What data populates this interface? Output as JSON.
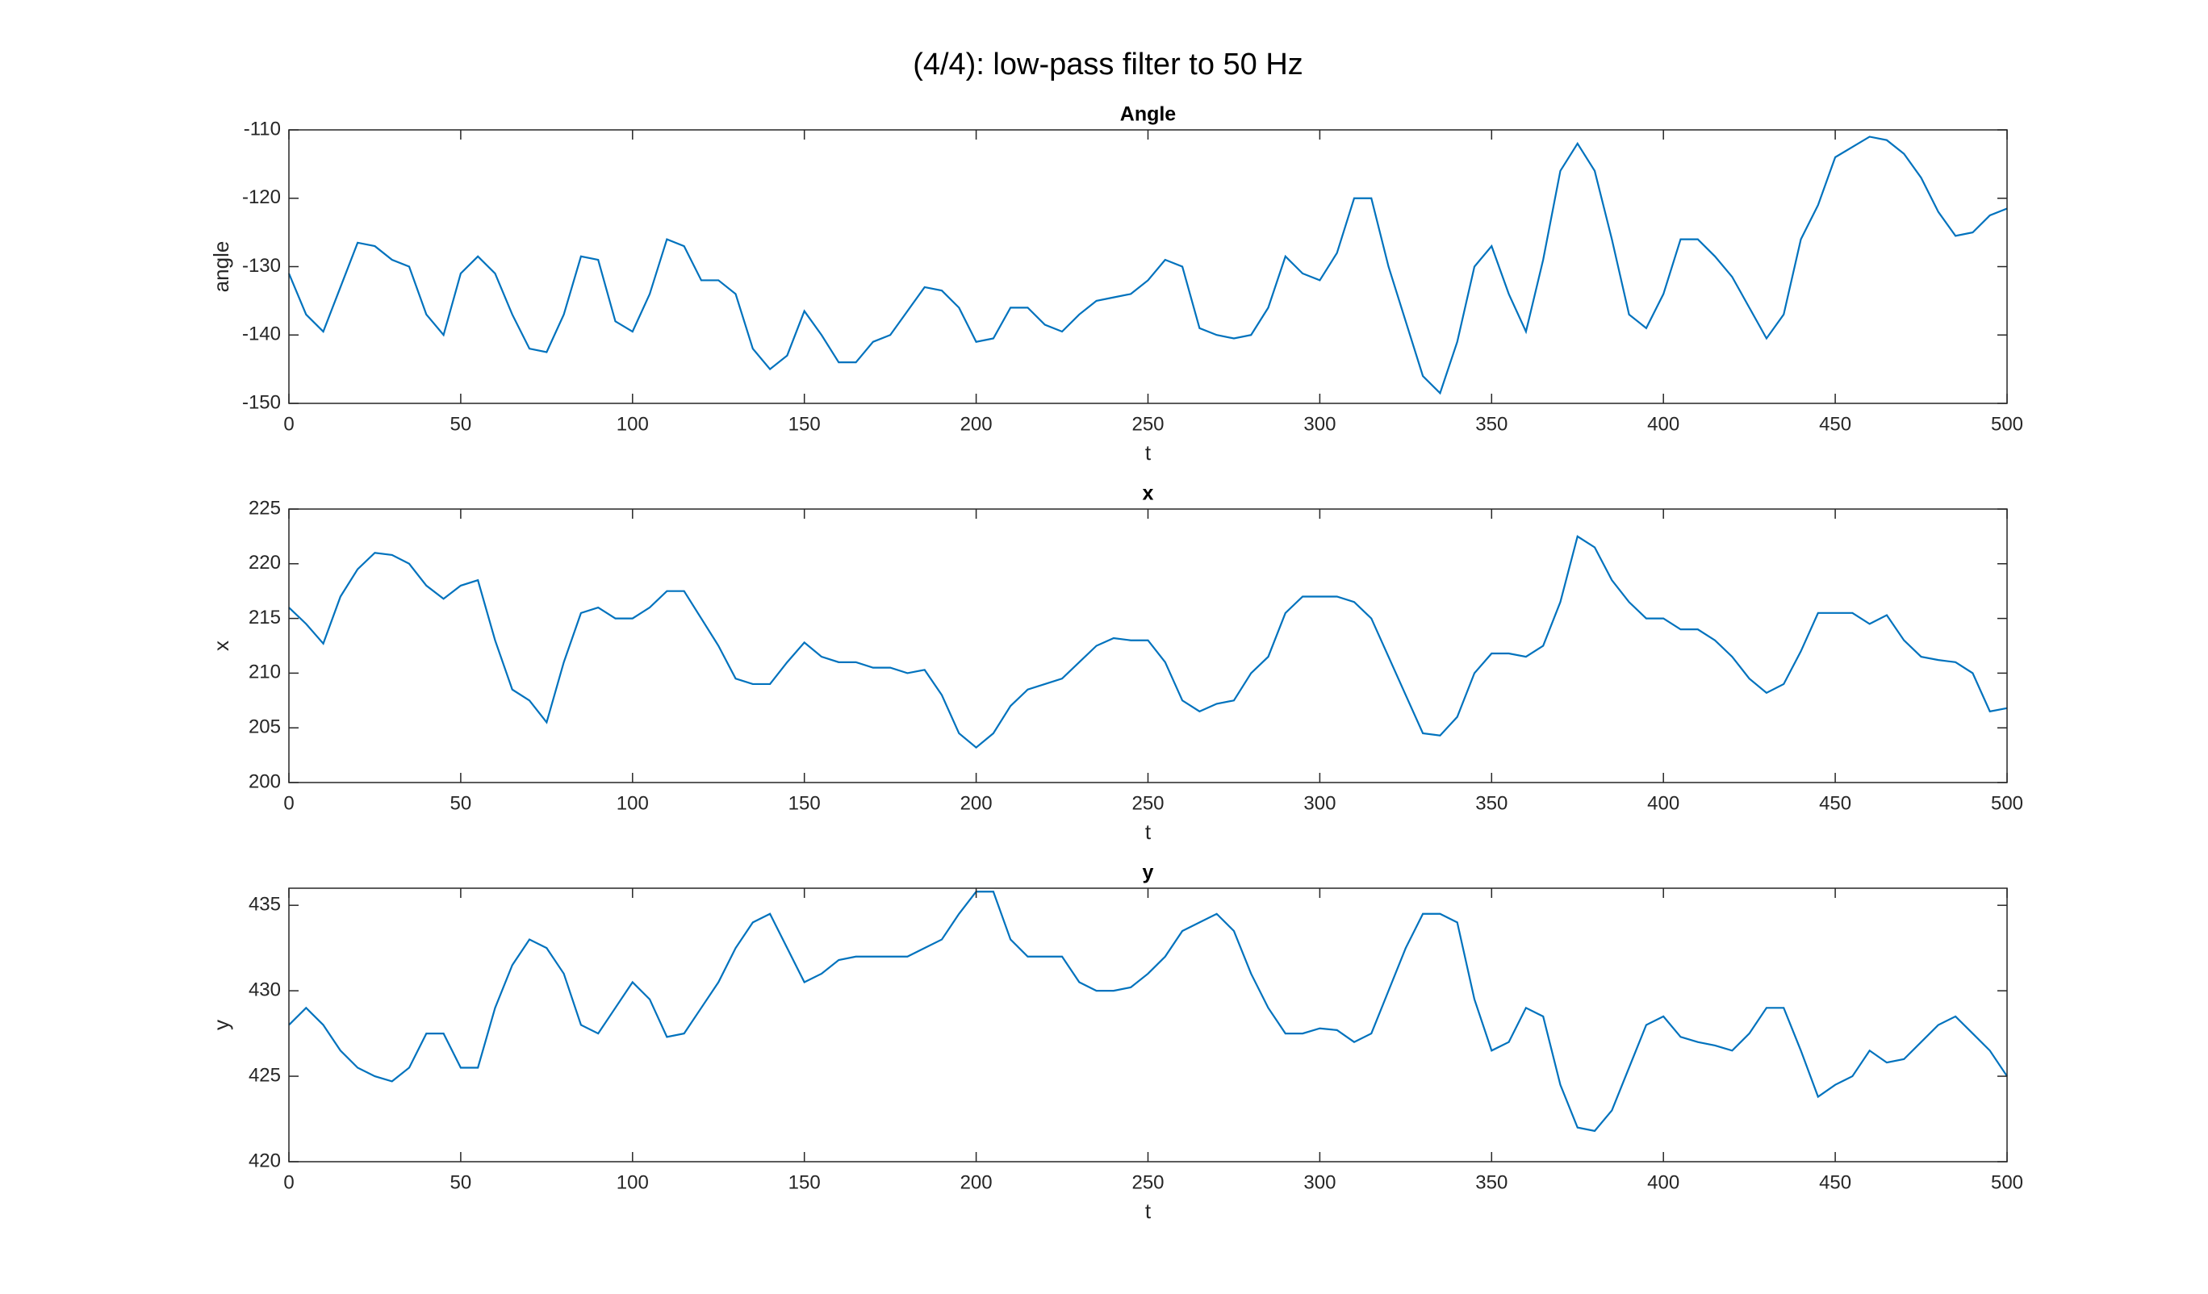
{
  "title": "(4/4): low-pass filter to 50 Hz",
  "chart_data": [
    {
      "type": "line",
      "title": "Angle",
      "xlabel": "t",
      "ylabel": "angle",
      "color": "#0072bd",
      "xlim": [
        0,
        500
      ],
      "xticks": [
        0,
        50,
        100,
        150,
        200,
        250,
        300,
        350,
        400,
        450,
        500
      ],
      "ylim": [
        -150,
        -110
      ],
      "yticks": [
        -150,
        -140,
        -130,
        -120,
        -110
      ],
      "x": [
        0,
        5,
        10,
        15,
        20,
        25,
        30,
        35,
        40,
        45,
        50,
        55,
        60,
        65,
        70,
        75,
        80,
        85,
        90,
        95,
        100,
        105,
        110,
        115,
        120,
        125,
        130,
        135,
        140,
        145,
        150,
        155,
        160,
        165,
        170,
        175,
        180,
        185,
        190,
        195,
        200,
        205,
        210,
        215,
        220,
        225,
        230,
        235,
        240,
        245,
        250,
        255,
        260,
        265,
        270,
        275,
        280,
        285,
        290,
        295,
        300,
        305,
        310,
        315,
        320,
        325,
        330,
        335,
        340,
        345,
        350,
        355,
        360,
        365,
        370,
        375,
        380,
        385,
        390,
        395,
        400,
        405,
        410,
        415,
        420,
        425,
        430,
        435,
        440,
        445,
        450,
        455,
        460,
        465,
        470,
        475,
        480,
        485,
        490,
        495,
        500
      ],
      "values": [
        -131,
        -137,
        -139.5,
        -133,
        -126.5,
        -127,
        -129,
        -130,
        -137,
        -140,
        -131,
        -128.5,
        -131,
        -137,
        -142,
        -142.5,
        -137,
        -128.5,
        -129,
        -138,
        -139.5,
        -134,
        -126,
        -127,
        -132,
        -132,
        -134,
        -142,
        -145,
        -143,
        -136.5,
        -140,
        -144,
        -144,
        -141,
        -140,
        -136.5,
        -133,
        -133.5,
        -136,
        -141,
        -140.5,
        -136,
        -136,
        -138.5,
        -139.5,
        -137,
        -135,
        -134.5,
        -134,
        -132,
        -129,
        -130,
        -139,
        -140,
        -140.5,
        -140,
        -136,
        -128.5,
        -131,
        -132,
        -128,
        -120,
        -120,
        -130,
        -138,
        -146,
        -148.5,
        -141,
        -130,
        -127,
        -134,
        -139.5,
        -129,
        -116,
        -112,
        -116,
        -126,
        -137,
        -139,
        -134,
        -126,
        -126,
        -128.5,
        -131.5,
        -136,
        -140.5,
        -137,
        -126,
        -121,
        -114,
        -112.5,
        -111,
        -111.5,
        -113.5,
        -117,
        -122,
        -125.5,
        -125,
        -122.5,
        -121.5
      ]
    },
    {
      "type": "line",
      "title": "x",
      "xlabel": "t",
      "ylabel": "x",
      "color": "#0072bd",
      "xlim": [
        0,
        500
      ],
      "xticks": [
        0,
        50,
        100,
        150,
        200,
        250,
        300,
        350,
        400,
        450,
        500
      ],
      "ylim": [
        200,
        225
      ],
      "yticks": [
        200,
        205,
        210,
        215,
        220,
        225
      ],
      "x": [
        0,
        5,
        10,
        15,
        20,
        25,
        30,
        35,
        40,
        45,
        50,
        55,
        60,
        65,
        70,
        75,
        80,
        85,
        90,
        95,
        100,
        105,
        110,
        115,
        120,
        125,
        130,
        135,
        140,
        145,
        150,
        155,
        160,
        165,
        170,
        175,
        180,
        185,
        190,
        195,
        200,
        205,
        210,
        215,
        220,
        225,
        230,
        235,
        240,
        245,
        250,
        255,
        260,
        265,
        270,
        275,
        280,
        285,
        290,
        295,
        300,
        305,
        310,
        315,
        320,
        325,
        330,
        335,
        340,
        345,
        350,
        355,
        360,
        365,
        370,
        375,
        380,
        385,
        390,
        395,
        400,
        405,
        410,
        415,
        420,
        425,
        430,
        435,
        440,
        445,
        450,
        455,
        460,
        465,
        470,
        475,
        480,
        485,
        490,
        495,
        500
      ],
      "values": [
        216,
        214.5,
        212.7,
        217,
        219.5,
        221,
        220.8,
        220,
        218,
        216.8,
        218,
        218.5,
        213,
        208.5,
        207.5,
        205.5,
        211,
        215.5,
        216,
        215,
        215,
        216,
        217.5,
        217.5,
        215,
        212.5,
        209.5,
        209,
        209,
        211,
        212.8,
        211.5,
        211,
        211,
        210.5,
        210.5,
        210,
        210.3,
        208,
        204.5,
        203.2,
        204.5,
        207,
        208.5,
        209,
        209.5,
        211,
        212.5,
        213.2,
        213,
        213,
        211,
        207.5,
        206.5,
        207.2,
        207.5,
        210,
        211.5,
        215.5,
        217,
        217,
        217,
        216.5,
        215,
        211.5,
        208,
        204.5,
        204.3,
        206,
        210,
        211.8,
        211.8,
        211.5,
        212.5,
        216.5,
        222.5,
        221.5,
        218.5,
        216.5,
        215,
        215,
        214,
        214,
        213,
        211.5,
        209.5,
        208.2,
        209,
        212,
        215.5,
        215.5,
        215.5,
        214.5,
        215.3,
        213,
        211.5,
        211.2,
        211,
        210,
        206.5,
        206.8
      ]
    },
    {
      "type": "line",
      "title": "y",
      "xlabel": "t",
      "ylabel": "y",
      "color": "#0072bd",
      "xlim": [
        0,
        500
      ],
      "xticks": [
        0,
        50,
        100,
        150,
        200,
        250,
        300,
        350,
        400,
        450,
        500
      ],
      "ylim": [
        420,
        436
      ],
      "yticks": [
        420,
        425,
        430,
        435
      ],
      "x": [
        0,
        5,
        10,
        15,
        20,
        25,
        30,
        35,
        40,
        45,
        50,
        55,
        60,
        65,
        70,
        75,
        80,
        85,
        90,
        95,
        100,
        105,
        110,
        115,
        120,
        125,
        130,
        135,
        140,
        145,
        150,
        155,
        160,
        165,
        170,
        175,
        180,
        185,
        190,
        195,
        200,
        205,
        210,
        215,
        220,
        225,
        230,
        235,
        240,
        245,
        250,
        255,
        260,
        265,
        270,
        275,
        280,
        285,
        290,
        295,
        300,
        305,
        310,
        315,
        320,
        325,
        330,
        335,
        340,
        345,
        350,
        355,
        360,
        365,
        370,
        375,
        380,
        385,
        390,
        395,
        400,
        405,
        410,
        415,
        420,
        425,
        430,
        435,
        440,
        445,
        450,
        455,
        460,
        465,
        470,
        475,
        480,
        485,
        490,
        495,
        500
      ],
      "values": [
        428,
        429,
        428,
        426.5,
        425.5,
        425,
        424.7,
        425.5,
        427.5,
        427.5,
        425.5,
        425.5,
        429,
        431.5,
        433,
        432.5,
        431,
        428,
        427.5,
        429,
        430.5,
        429.5,
        427.3,
        427.5,
        429,
        430.5,
        432.5,
        434,
        434.5,
        432.5,
        430.5,
        431,
        431.8,
        432,
        432,
        432,
        432,
        432.5,
        433,
        434.5,
        435.8,
        435.8,
        433,
        432,
        432,
        432,
        430.5,
        430,
        430,
        430.2,
        431,
        432,
        433.5,
        434,
        434.5,
        433.5,
        431,
        429,
        427.5,
        427.5,
        427.8,
        427.7,
        427,
        427.5,
        430,
        432.5,
        434.5,
        434.5,
        434,
        429.5,
        426.5,
        427,
        429,
        428.5,
        424.5,
        422,
        421.8,
        423,
        425.5,
        428,
        428.5,
        427.3,
        427,
        426.8,
        426.5,
        427.5,
        429,
        429,
        426.5,
        423.8,
        424.5,
        425,
        426.5,
        425.8,
        426,
        427,
        428,
        428.5,
        427.5,
        426.5,
        425
      ]
    }
  ]
}
